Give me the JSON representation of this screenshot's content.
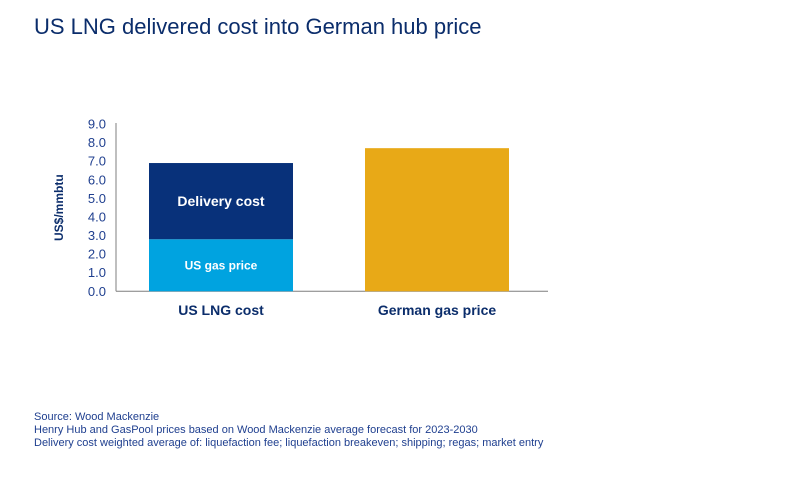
{
  "title": "US LNG delivered cost into German hub price",
  "chart_data": {
    "type": "bar",
    "stacked": true,
    "title": "US LNG delivered cost into German hub price",
    "ylabel": "US$/mmbtu",
    "xlabel": "",
    "ylim": [
      0,
      9
    ],
    "yticks": [
      "0.0",
      "1.0",
      "2.0",
      "3.0",
      "4.0",
      "5.0",
      "6.0",
      "7.0",
      "8.0",
      "9.0"
    ],
    "grid": false,
    "categories": [
      "US LNG cost",
      "German gas price"
    ],
    "bars": [
      {
        "category": "US LNG cost",
        "segments": [
          {
            "label": "US gas price",
            "value": 2.8,
            "color": "#00a3e0"
          },
          {
            "label": "Delivery cost",
            "value": 4.1,
            "color": "#08317a"
          }
        ]
      },
      {
        "category": "German gas price",
        "segments": [
          {
            "label": "",
            "value": 7.7,
            "color": "#e8a917"
          }
        ]
      }
    ]
  },
  "notes": [
    "Source: Wood Mackenzie",
    "Henry Hub and GasPool prices based on Wood Mackenzie average forecast for 2023-2030",
    "Delivery cost weighted average of: liquefaction fee; liquefaction breakeven; shipping; regas; market entry"
  ]
}
